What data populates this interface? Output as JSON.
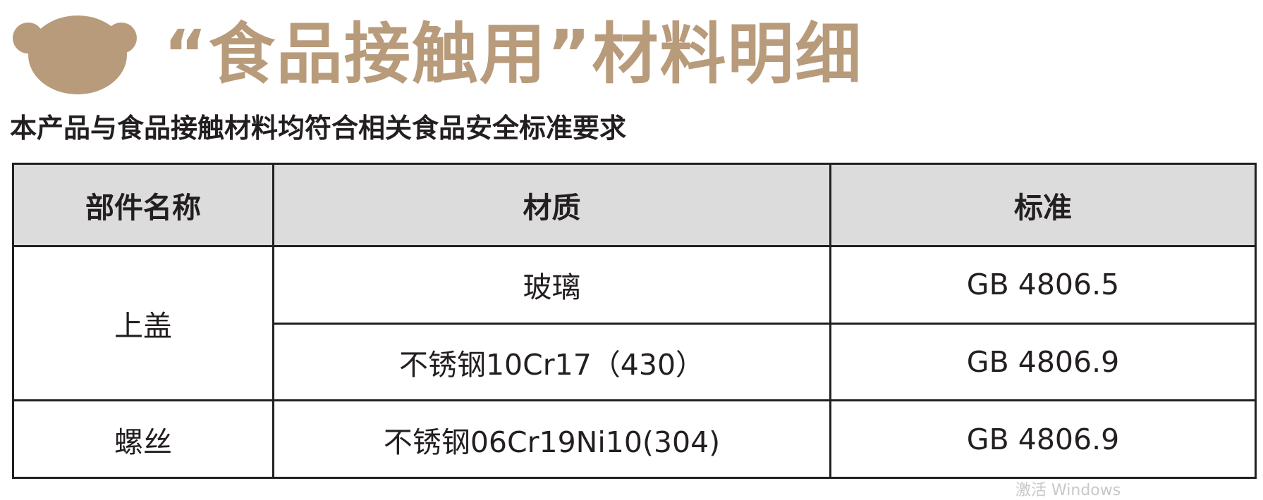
{
  "header": {
    "logo_icon": "bear-head-icon",
    "title": "“食品接触用”材料明细",
    "subtitle": "本产品与食品接触材料均符合相关食品安全标准要求",
    "accent_color": "#b89b7a"
  },
  "table": {
    "columns": [
      "部件名称",
      "材质",
      "标准"
    ],
    "rows": [
      {
        "part": "上盖",
        "items": [
          {
            "material": "玻璃",
            "standard": "GB 4806.5"
          },
          {
            "material": "不锈钢10Cr17（430）",
            "standard": "GB 4806.9"
          }
        ]
      },
      {
        "part": "螺丝",
        "items": [
          {
            "material": "不锈钢06Cr19Ni10(304)",
            "standard": "GB 4806.9"
          }
        ]
      }
    ]
  },
  "watermark": "激活 Windows"
}
